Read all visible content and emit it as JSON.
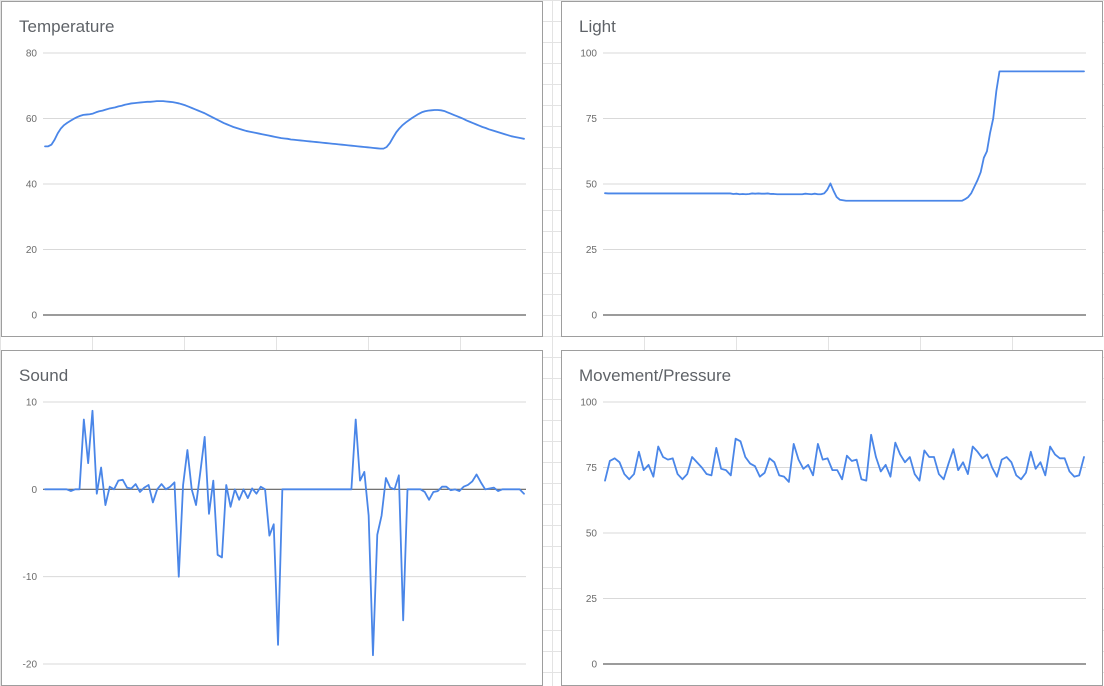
{
  "colors": {
    "line": "#4a86e8",
    "grid": "#d9d9d9",
    "baseline": "#5f5f5f",
    "title": "#5f6368"
  },
  "chart_data": [
    {
      "type": "line",
      "title": "Temperature",
      "xlabel": "",
      "ylabel": "",
      "ylim": [
        0,
        80
      ],
      "yticks": [
        0,
        20,
        40,
        60,
        80
      ],
      "ytick_labels": [
        "0",
        "20",
        "40",
        "60",
        "80"
      ],
      "grid": true,
      "series": [
        {
          "name": "Temperature",
          "values": [
            51.5,
            51.5,
            52,
            53.5,
            55.5,
            57,
            58,
            58.7,
            59.3,
            59.9,
            60.4,
            60.8,
            61.1,
            61.2,
            61.3,
            61.5,
            61.9,
            62.2,
            62.4,
            62.7,
            63,
            63.2,
            63.4,
            63.7,
            63.9,
            64.2,
            64.4,
            64.6,
            64.7,
            64.8,
            64.9,
            65,
            65.1,
            65.1,
            65.2,
            65.3,
            65.3,
            65.3,
            65.2,
            65.1,
            65,
            64.8,
            64.6,
            64.3,
            64,
            63.6,
            63.2,
            62.8,
            62.4,
            62,
            61.6,
            61.1,
            60.6,
            60.1,
            59.6,
            59.1,
            58.6,
            58.2,
            57.8,
            57.4,
            57.1,
            56.8,
            56.5,
            56.2,
            56,
            55.8,
            55.6,
            55.4,
            55.2,
            55,
            54.8,
            54.6,
            54.4,
            54.2,
            54,
            53.9,
            53.8,
            53.6,
            53.5,
            53.4,
            53.3,
            53.2,
            53.1,
            53,
            52.9,
            52.8,
            52.7,
            52.6,
            52.5,
            52.4,
            52.3,
            52.2,
            52.1,
            52,
            51.9,
            51.8,
            51.7,
            51.6,
            51.5,
            51.4,
            51.3,
            51.2,
            51.1,
            51,
            50.9,
            50.8,
            50.8,
            51.3,
            52.5,
            54.2,
            55.8,
            57,
            58,
            58.8,
            59.5,
            60.2,
            60.8,
            61.4,
            61.9,
            62.2,
            62.4,
            62.5,
            62.6,
            62.6,
            62.5,
            62.3,
            61.9,
            61.5,
            61.1,
            60.7,
            60.3,
            59.9,
            59.4,
            59,
            58.6,
            58.2,
            57.8,
            57.4,
            57.1,
            56.7,
            56.4,
            56.1,
            55.8,
            55.5,
            55.2,
            54.9,
            54.6,
            54.4,
            54.2,
            54,
            53.8
          ]
        }
      ]
    },
    {
      "type": "line",
      "title": "Light",
      "xlabel": "",
      "ylabel": "",
      "ylim": [
        0,
        100
      ],
      "yticks": [
        0,
        25,
        50,
        75,
        100
      ],
      "ytick_labels": [
        "0",
        "25",
        "50",
        "75",
        "100"
      ],
      "grid": true,
      "series": [
        {
          "name": "Light",
          "values": [
            46.5,
            46.4,
            46.4,
            46.4,
            46.4,
            46.4,
            46.4,
            46.4,
            46.4,
            46.4,
            46.4,
            46.4,
            46.4,
            46.4,
            46.4,
            46.4,
            46.4,
            46.4,
            46.4,
            46.4,
            46.4,
            46.4,
            46.4,
            46.4,
            46.4,
            46.4,
            46.4,
            46.4,
            46.4,
            46.4,
            46.4,
            46.4,
            46.4,
            46.4,
            46.4,
            46.4,
            46.4,
            46.4,
            46.4,
            46.4,
            46.4,
            46.2,
            46.3,
            46.1,
            46.2,
            46.1,
            46.2,
            46.4,
            46.3,
            46.4,
            46.3,
            46.3,
            46.4,
            46.2,
            46.2,
            46.1,
            46.1,
            46.1,
            46.1,
            46.1,
            46.1,
            46.1,
            46.1,
            46.1,
            46.3,
            46.2,
            46.1,
            46.3,
            46.1,
            46.1,
            46.4,
            47.8,
            50.2,
            47.4,
            45,
            44,
            43.8,
            43.6,
            43.6,
            43.6,
            43.6,
            43.6,
            43.6,
            43.6,
            43.6,
            43.6,
            43.6,
            43.6,
            43.6,
            43.6,
            43.6,
            43.6,
            43.6,
            43.6,
            43.6,
            43.6,
            43.6,
            43.6,
            43.6,
            43.6,
            43.6,
            43.6,
            43.6,
            43.6,
            43.6,
            43.6,
            43.6,
            43.6,
            43.6,
            43.6,
            43.6,
            43.6,
            43.6,
            43.6,
            43.6,
            44.2,
            45,
            46.5,
            49,
            51.5,
            54.5,
            60,
            62.5,
            69.5,
            75,
            85.5,
            93,
            93,
            93,
            93,
            93,
            93,
            93,
            93,
            93,
            93,
            93,
            93,
            93,
            93,
            93,
            93,
            93,
            93,
            93,
            93,
            93,
            93,
            93,
            93,
            93,
            93,
            93,
            93
          ]
        }
      ]
    },
    {
      "type": "line",
      "title": "Sound",
      "xlabel": "",
      "ylabel": "",
      "ylim": [
        -20,
        10
      ],
      "yticks": [
        -20,
        -10,
        0,
        10
      ],
      "ytick_labels": [
        "-20",
        "-10",
        "0",
        "10"
      ],
      "grid": true,
      "series": [
        {
          "name": "Sound",
          "values": [
            0,
            0,
            0,
            0,
            0,
            0,
            -0.2,
            0,
            0,
            8,
            3,
            9,
            -0.5,
            2.5,
            -1.8,
            0.3,
            0,
            1,
            1.1,
            0.2,
            0.1,
            0.6,
            -0.3,
            0.2,
            0.5,
            -1.5,
            0,
            0.6,
            0,
            0.3,
            0.8,
            -10,
            0.5,
            4.5,
            0,
            -1.8,
            2,
            6,
            -2.8,
            1,
            -7.5,
            -7.8,
            0.5,
            -2,
            0,
            -1.2,
            0,
            -1,
            0.1,
            -0.5,
            0.3,
            0,
            -5.3,
            -4,
            -17.8,
            0,
            0,
            0,
            0,
            0,
            0,
            0,
            0,
            0,
            0,
            0,
            0,
            0,
            0,
            0,
            0,
            0,
            8,
            1,
            2,
            -3,
            -19,
            -5.2,
            -3,
            1.3,
            0.2,
            0,
            1.6,
            -15,
            0,
            0,
            0,
            0,
            -0.3,
            -1.2,
            -0.3,
            -0.2,
            0.3,
            0.3,
            -0.1,
            0,
            -0.2,
            0.3,
            0.5,
            0.9,
            1.7,
            0.8,
            0,
            0.1,
            0.2,
            -0.2,
            0,
            0,
            0,
            0,
            0,
            -0.5
          ]
        }
      ]
    },
    {
      "type": "line",
      "title": "Movement/Pressure",
      "xlabel": "",
      "ylabel": "",
      "ylim": [
        0,
        100
      ],
      "yticks": [
        0,
        25,
        50,
        75,
        100
      ],
      "ytick_labels": [
        "0",
        "25",
        "50",
        "75",
        "100"
      ],
      "grid": true,
      "series": [
        {
          "name": "Movement/Pressure",
          "values": [
            70,
            77.5,
            78.5,
            77,
            72.5,
            70.5,
            72.5,
            81,
            74,
            76,
            71.5,
            83,
            79,
            78,
            78.5,
            72.5,
            70.5,
            72.5,
            79,
            77,
            75,
            72.5,
            72,
            82.5,
            74.5,
            74,
            72,
            86,
            85,
            79,
            76.5,
            75.5,
            71.5,
            73,
            78.5,
            77,
            72,
            71.5,
            69.5,
            84,
            78,
            74.5,
            76,
            72,
            84,
            78,
            78.5,
            74,
            74,
            70.5,
            79.5,
            77.5,
            78,
            70.5,
            70,
            87.5,
            79,
            73.5,
            76,
            71.5,
            84.5,
            80,
            77,
            79,
            72.5,
            70,
            81.5,
            79,
            79,
            72.5,
            70.5,
            76.5,
            82,
            74,
            77,
            72.5,
            83,
            81,
            78.5,
            80,
            75,
            71.5,
            78,
            79,
            77,
            72,
            70.5,
            73,
            81,
            74.5,
            77,
            72,
            83,
            80,
            78.5,
            78.5,
            73.5,
            71.5,
            72,
            79
          ]
        }
      ]
    }
  ]
}
